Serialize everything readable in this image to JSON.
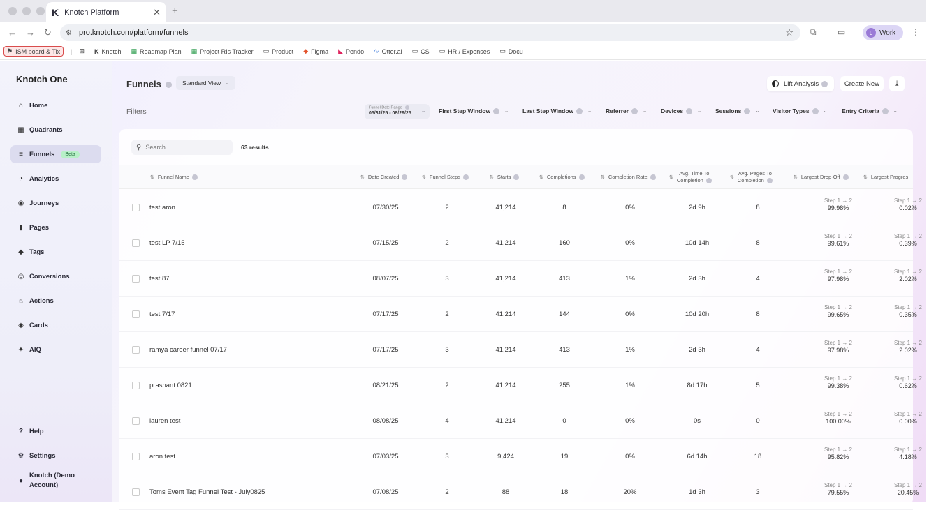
{
  "browser": {
    "tab_title": "Knotch Platform",
    "tab_logo": "K",
    "url": "pro.knotch.com/platform/funnels",
    "profile_label": "Work",
    "profile_initial": "L",
    "bookmarks": [
      {
        "label": "ISM board & Tix",
        "icon": "flag-icon"
      },
      {
        "label": "Knotch",
        "icon": "knotch-logo-icon"
      },
      {
        "label": "Roadmap Plan",
        "icon": "sheet-icon"
      },
      {
        "label": "Project RIs Tracker",
        "icon": "sheet-icon"
      },
      {
        "label": "Product",
        "icon": "folder-icon"
      },
      {
        "label": "Figma",
        "icon": "figma-icon"
      },
      {
        "label": "Pendo",
        "icon": "pendo-icon"
      },
      {
        "label": "Otter.ai",
        "icon": "otter-icon"
      },
      {
        "label": "CS",
        "icon": "folder-icon"
      },
      {
        "label": "HR / Expenses",
        "icon": "folder-icon"
      },
      {
        "label": "Docu",
        "icon": "folder-icon"
      }
    ]
  },
  "sidebar": {
    "brand": "Knotch One",
    "items": [
      {
        "label": "Home",
        "icon": "home-icon"
      },
      {
        "label": "Quadrants",
        "icon": "grid-icon"
      },
      {
        "label": "Funnels",
        "icon": "filter-icon",
        "badge": "Beta"
      },
      {
        "label": "Analytics",
        "icon": "pie-icon"
      },
      {
        "label": "Journeys",
        "icon": "compass-icon"
      },
      {
        "label": "Pages",
        "icon": "pages-icon"
      },
      {
        "label": "Tags",
        "icon": "tag-icon"
      },
      {
        "label": "Conversions",
        "icon": "target-icon"
      },
      {
        "label": "Actions",
        "icon": "pointer-icon"
      },
      {
        "label": "Cards",
        "icon": "stack-icon"
      },
      {
        "label": "AIQ",
        "icon": "sparkle-icon"
      }
    ],
    "bottom": {
      "help": "Help",
      "settings": "Settings",
      "account_line1": "Knotch (Demo",
      "account_line2": "Account)"
    }
  },
  "header": {
    "title": "Funnels",
    "view": "Standard View",
    "lift_analysis": "Lift Analysis",
    "create_new": "Create New"
  },
  "filters": {
    "label": "Filters",
    "date_range_label": "Funnel Date Range",
    "date_range_value": "05/31/25 - 08/29/25",
    "items": [
      "First Step Window",
      "Last Step Window",
      "Referrer",
      "Devices",
      "Sessions",
      "Visitor Types",
      "Entry Criteria"
    ]
  },
  "table": {
    "search_placeholder": "Search",
    "results": "63 results",
    "columns": {
      "name": "Funnel Name",
      "date": "Date Created",
      "steps": "Funnel Steps",
      "starts": "Starts",
      "completions": "Completions",
      "rate": "Completion Rate",
      "time_line1": "Avg. Time To",
      "time_line2": "Completion",
      "pages_line1": "Avg. Pages To",
      "pages_line2": "Completion",
      "dropoff": "Largest Drop-Off",
      "progress": "Largest Progres"
    },
    "rows": [
      {
        "name": "test aron",
        "date": "07/30/25",
        "steps": "2",
        "starts": "41,214",
        "completions": "8",
        "rate": "0%",
        "time": "2d 9h",
        "pages": "8",
        "drop_step": "Step  1 → 2",
        "drop_val": "99.98%",
        "prog_step": "Step  1 → 2",
        "prog_val": "0.02%"
      },
      {
        "name": "test LP 7/15",
        "date": "07/15/25",
        "steps": "2",
        "starts": "41,214",
        "completions": "160",
        "rate": "0%",
        "time": "10d 14h",
        "pages": "8",
        "drop_step": "Step  1 → 2",
        "drop_val": "99.61%",
        "prog_step": "Step  1 → 2",
        "prog_val": "0.39%"
      },
      {
        "name": "test 87",
        "date": "08/07/25",
        "steps": "3",
        "starts": "41,214",
        "completions": "413",
        "rate": "1%",
        "time": "2d 3h",
        "pages": "4",
        "drop_step": "Step  1 → 2",
        "drop_val": "97.98%",
        "prog_step": "Step  1 → 2",
        "prog_val": "2.02%"
      },
      {
        "name": "test 7/17",
        "date": "07/17/25",
        "steps": "2",
        "starts": "41,214",
        "completions": "144",
        "rate": "0%",
        "time": "10d 20h",
        "pages": "8",
        "drop_step": "Step  1 → 2",
        "drop_val": "99.65%",
        "prog_step": "Step  1 → 2",
        "prog_val": "0.35%"
      },
      {
        "name": "ramya career funnel 07/17",
        "date": "07/17/25",
        "steps": "3",
        "starts": "41,214",
        "completions": "413",
        "rate": "1%",
        "time": "2d 3h",
        "pages": "4",
        "drop_step": "Step  1 → 2",
        "drop_val": "97.98%",
        "prog_step": "Step  1 → 2",
        "prog_val": "2.02%"
      },
      {
        "name": "prashant 0821",
        "date": "08/21/25",
        "steps": "2",
        "starts": "41,214",
        "completions": "255",
        "rate": "1%",
        "time": "8d 17h",
        "pages": "5",
        "drop_step": "Step  1 → 2",
        "drop_val": "99.38%",
        "prog_step": "Step  1 → 2",
        "prog_val": "0.62%"
      },
      {
        "name": "lauren test",
        "date": "08/08/25",
        "steps": "4",
        "starts": "41,214",
        "completions": "0",
        "rate": "0%",
        "time": "0s",
        "pages": "0",
        "drop_step": "Step  1 → 2",
        "drop_val": "100.00%",
        "prog_step": "Step  1 → 2",
        "prog_val": "0.00%"
      },
      {
        "name": "aron test",
        "date": "07/03/25",
        "steps": "3",
        "starts": "9,424",
        "completions": "19",
        "rate": "0%",
        "time": "6d 14h",
        "pages": "18",
        "drop_step": "Step  1 → 2",
        "drop_val": "95.82%",
        "prog_step": "Step  1 → 2",
        "prog_val": "4.18%"
      },
      {
        "name": "Toms Event Tag Funnel Test - July0825",
        "date": "07/08/25",
        "steps": "2",
        "starts": "88",
        "completions": "18",
        "rate": "20%",
        "time": "1d 3h",
        "pages": "3",
        "drop_step": "Step  1 → 2",
        "drop_val": "79.55%",
        "prog_step": "Step  1 → 2",
        "prog_val": "20.45%"
      }
    ]
  }
}
